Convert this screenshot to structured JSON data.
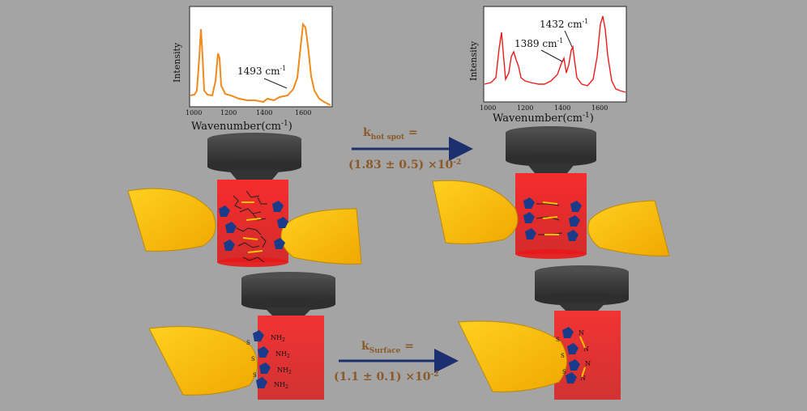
{
  "spectrum_left": {
    "ylabel": "Intensity",
    "xlabel": "Wavenumber(cm",
    "xlabel_sup": "-1",
    "xlabel_close": ")",
    "ticks": [
      "1000",
      "1200",
      "1400",
      "1600"
    ],
    "annotation": "1493 cm",
    "annotation_sup": "-1",
    "color": "#f08a1c"
  },
  "spectrum_right": {
    "ylabel": "Intensity",
    "xlabel": "Wavenumber(cm",
    "xlabel_sup": "-1",
    "xlabel_close": ")",
    "ticks": [
      "1000",
      "1200",
      "1400",
      "1600"
    ],
    "annotation_a": "1389 cm",
    "annotation_a_sup": "-1",
    "annotation_b": "1432 cm",
    "annotation_b_sup": "-1",
    "color": "#ee1c1c"
  },
  "k_hot_spot": {
    "k": "k",
    "sub": "hot spot",
    "eq": " =",
    "value": "(1.83 ± 0.5) ×10",
    "exp": "-2"
  },
  "k_surface": {
    "k": "k",
    "sub": "Surface",
    "eq": " =",
    "value": "(1.1 ± 0.1) ×10",
    "exp": "-2"
  },
  "molecule_labels": {
    "amine": "NH",
    "amine_sub": "2",
    "sulfur": "S",
    "nitrogen": "N"
  },
  "colors": {
    "background": "#a4a4a4",
    "gold": "#f5b800",
    "laser": "#ff1a1a",
    "objective": "#3a3a3a",
    "arrow": "#1c2f6e",
    "molecule": "#1a3a8a"
  }
}
